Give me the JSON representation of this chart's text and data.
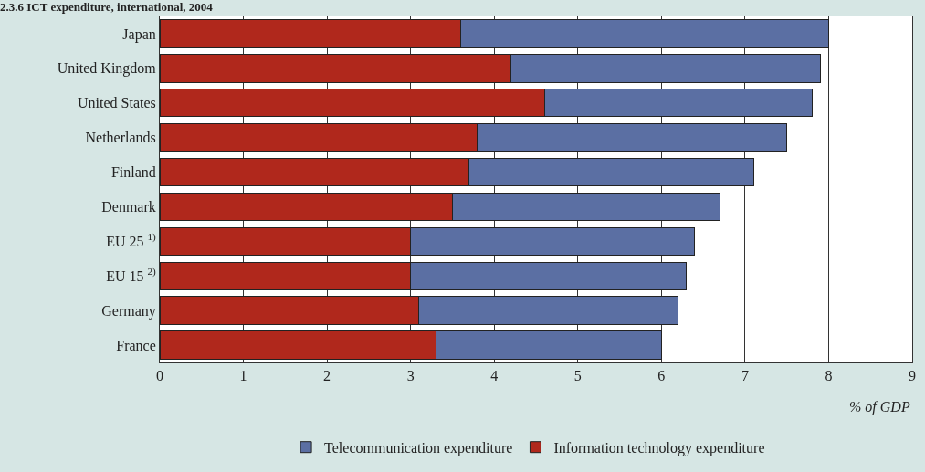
{
  "chart_data": {
    "type": "bar",
    "orientation": "horizontal",
    "stacked": true,
    "title": "2.3.6 ICT expenditure, international, 2004",
    "xlabel": "% of GDP",
    "categories": [
      "Japan",
      "United Kingdom",
      "United States",
      "Netherlands",
      "Finland",
      "Denmark",
      "EU 25 $^{1)}$",
      "EU 15 $^{2)}$",
      "Germany",
      "France"
    ],
    "series": [
      {
        "name": "Information technology expenditure",
        "color": "#b0281c",
        "values": [
          3.6,
          4.2,
          4.6,
          3.8,
          3.7,
          3.5,
          3.0,
          3.0,
          3.1,
          3.3
        ]
      },
      {
        "name": "Telecommunication expenditure",
        "color": "#5b6fa3",
        "values": [
          4.4,
          3.7,
          3.2,
          3.7,
          3.4,
          3.2,
          3.4,
          3.3,
          3.1,
          2.7
        ]
      }
    ],
    "xlim": [
      0,
      9
    ],
    "xticks": [
      0,
      1,
      2,
      3,
      4,
      5,
      6,
      7,
      8,
      9
    ],
    "grid": "x",
    "legend": "bottom"
  }
}
